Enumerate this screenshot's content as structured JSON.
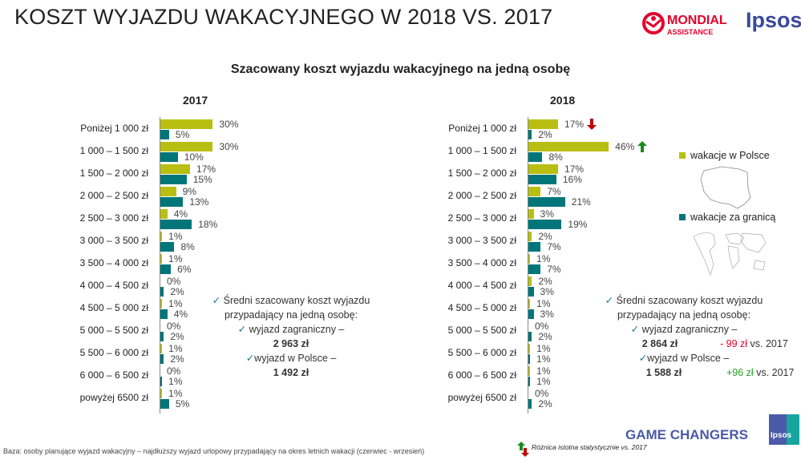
{
  "header": {
    "title": "KOSZT WYJAZDU WAKACYJNEGO W 2018 VS. 2017",
    "logo_mondial": "MONDIAL ASSISTANCE",
    "logo_ipsos": "Ipsos"
  },
  "colors": {
    "poland": "#b8bf12",
    "abroad": "#00767a",
    "decrease": "#c00000",
    "increase": "#1a8a1a",
    "check": "#1f7a8c"
  },
  "chart_data": [
    {
      "type": "bar",
      "orientation": "horizontal",
      "title": "Szacowany koszt wyjazdu wakacyjnego na jedną osobę",
      "subtitle": "2017",
      "categories": [
        "Poniżej 1 000 zł",
        "1 000 – 1 500 zł",
        "1 500 – 2 000 zł",
        "2 000 – 2 500 zł",
        "2 500 – 3 000 zł",
        "3 000 – 3 500 zł",
        "3 500 – 4 000 zł",
        "4 000 – 4 500 zł",
        "4 500 – 5 000 zł",
        "5 000 – 5 500 zł",
        "5 500 – 6 000 zł",
        "6 000 – 6 500 zł",
        "powyżej 6500 zł"
      ],
      "series": [
        {
          "name": "wakacje w Polsce",
          "values": [
            30,
            30,
            17,
            9,
            4,
            1,
            1,
            0,
            1,
            0,
            1,
            0,
            1
          ]
        },
        {
          "name": "wakacje za granicą",
          "values": [
            5,
            10,
            15,
            13,
            18,
            8,
            6,
            2,
            4,
            2,
            2,
            1,
            5
          ]
        }
      ],
      "unit": "%"
    },
    {
      "type": "bar",
      "orientation": "horizontal",
      "subtitle": "2018",
      "categories": [
        "Poniżej 1 000 zł",
        "1 000 – 1 500 zł",
        "1 500 – 2 000 zł",
        "2 000 – 2 500 zł",
        "2 500 – 3 000 zł",
        "3 000 – 3 500 zł",
        "3 500 – 4 000 zł",
        "4 000 – 4 500 zł",
        "4 500 – 5 000 zł",
        "5 000 – 5 500 zł",
        "5 500 – 6 000 zł",
        "6 000 – 6 500 zł",
        "powyżej 6500 zł"
      ],
      "series": [
        {
          "name": "wakacje w Polsce",
          "values": [
            17,
            46,
            17,
            7,
            3,
            2,
            1,
            2,
            1,
            0,
            1,
            1,
            0
          ],
          "significance": [
            "down",
            "up",
            null,
            null,
            null,
            null,
            null,
            null,
            null,
            null,
            null,
            null,
            null
          ]
        },
        {
          "name": "wakacje za granicą",
          "values": [
            2,
            8,
            16,
            21,
            19,
            7,
            7,
            3,
            3,
            2,
            1,
            1,
            2
          ]
        }
      ],
      "unit": "%"
    }
  ],
  "legend": {
    "poland": "wakacje w Polsce",
    "abroad": "wakacje za granicą"
  },
  "notes2017": {
    "line1": "Średni szacowany koszt wyjazdu",
    "line2": "przypadający na jedną osobę:",
    "abroad_label": "wyjazd zagraniczny –",
    "abroad_value": "2 963 zł",
    "poland_label": "wyjazd w Polsce –",
    "poland_value": "1 492 zł"
  },
  "notes2018": {
    "line1": "Średni szacowany koszt wyjazdu",
    "line2": "przypadający na jedną osobę:",
    "abroad_label": "wyjazd zagraniczny –",
    "abroad_value": "2 864 zł",
    "abroad_diff": "- 99 zł",
    "poland_label": "wyjazd w Polsce –",
    "poland_value": "1 588 zł",
    "poland_diff": "+96 zł",
    "vs": "vs. 2017"
  },
  "footer": {
    "base": "Baza: osoby planujące wyjazd wakacyjny – najdłuższy wyjazd urlopowy przypadający na okres letnich wakacji (czerwiec - wrzesień)",
    "significance": "Różnica istotna statystycznie vs. 2017",
    "game_changers": "GAME CHANGERS",
    "ipsos_badge": "Ipsos"
  }
}
